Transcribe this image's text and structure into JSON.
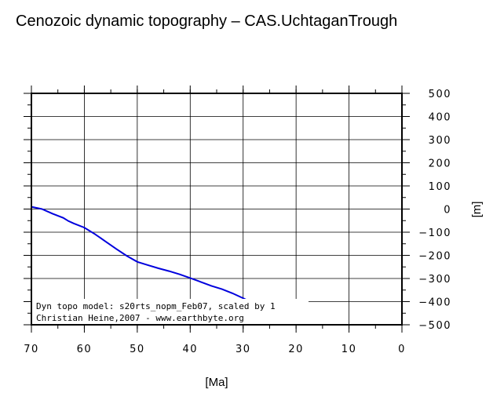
{
  "title": "Cenozoic dynamic topography – CAS.UchtaganTrough",
  "chart_data": {
    "type": "line",
    "title": "Cenozoic dynamic topography – CAS.UchtaganTrough",
    "xlabel": "[Ma]",
    "ylabel": "[m]",
    "xlim": [
      70,
      0
    ],
    "ylim": [
      -500,
      500
    ],
    "x_ticks": [
      70,
      60,
      50,
      40,
      30,
      20,
      10,
      0
    ],
    "y_ticks": [
      500,
      400,
      300,
      200,
      100,
      0,
      -100,
      -200,
      -300,
      -400,
      -500
    ],
    "x_tick_labels": [
      "70",
      "60",
      "50",
      "40",
      "30",
      "20",
      "10",
      "0"
    ],
    "y_tick_labels": [
      "500",
      "400",
      "300",
      "200",
      "100",
      "0",
      "−100",
      "−200",
      "−300",
      "−400",
      "−500"
    ],
    "grid": true,
    "series": [
      {
        "color": "#0000dd",
        "x": [
          70,
          68,
          66,
          64,
          63,
          62,
          60,
          58,
          56,
          54,
          52,
          50,
          48,
          46,
          44,
          42,
          40,
          38,
          36,
          34,
          32,
          30,
          28,
          26,
          24,
          22,
          21
        ],
        "y": [
          10,
          0,
          -20,
          -38,
          -52,
          -62,
          -80,
          -108,
          -140,
          -172,
          -202,
          -228,
          -242,
          -256,
          -268,
          -282,
          -298,
          -315,
          -332,
          -346,
          -364,
          -385,
          -408,
          -430,
          -452,
          -485,
          -500
        ]
      }
    ],
    "annotations": [
      "Dyn topo model: s20rts_nopm_Feb07, scaled by 1",
      "Christian Heine,2007 - www.earthbyte.org"
    ]
  }
}
